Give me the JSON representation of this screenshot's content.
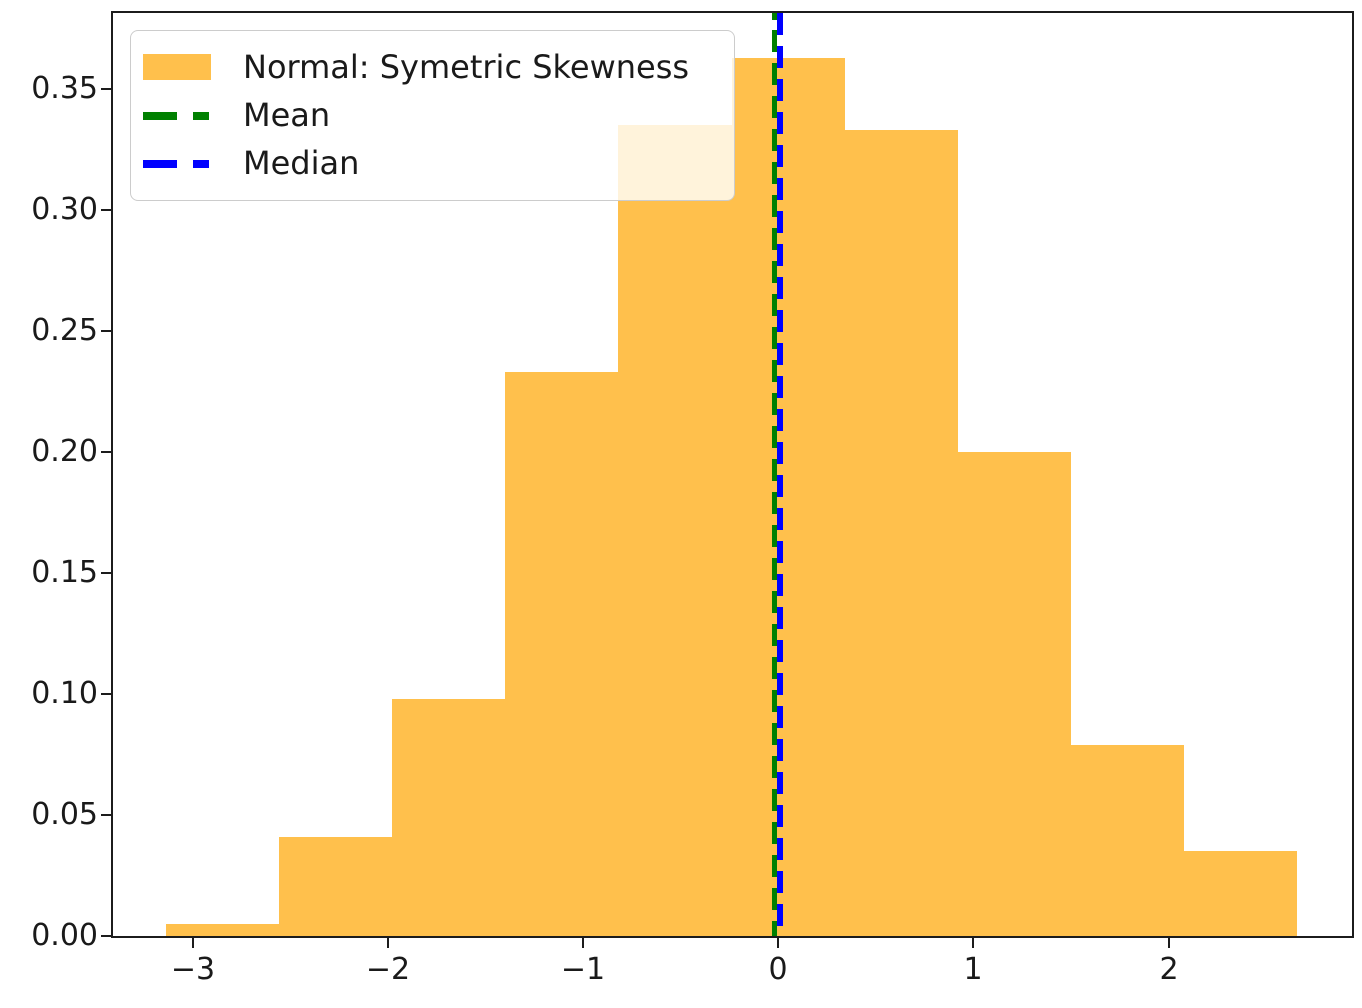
{
  "chart_data": {
    "type": "bar",
    "subtype": "histogram-density",
    "title": "",
    "xlabel": "",
    "ylabel": "",
    "grid": false,
    "bin_edges": [
      -3.14,
      -2.56,
      -1.98,
      -1.4,
      -0.82,
      -0.24,
      0.34,
      0.92,
      1.5,
      2.08,
      2.66
    ],
    "values": [
      0.005,
      0.041,
      0.098,
      0.233,
      0.335,
      0.363,
      0.333,
      0.2,
      0.079,
      0.035
    ],
    "bar_color": "#FFA500",
    "bar_alpha": 0.7,
    "xlim": [
      -3.41,
      2.94
    ],
    "ylim": [
      0,
      0.3814
    ],
    "xticks": {
      "values": [
        -3,
        -2,
        -1,
        0,
        1,
        2
      ],
      "labels": [
        "−3",
        "−2",
        "−1",
        "0",
        "1",
        "2"
      ]
    },
    "yticks": {
      "values": [
        0.0,
        0.05,
        0.1,
        0.15,
        0.2,
        0.25,
        0.3,
        0.35
      ],
      "labels": [
        "0.00",
        "0.05",
        "0.10",
        "0.15",
        "0.20",
        "0.25",
        "0.30",
        "0.35"
      ]
    },
    "mean_line": {
      "x": -0.02,
      "color": "#008000",
      "style": "dashed"
    },
    "median_line": {
      "x": 0.01,
      "color": "#0000FF",
      "style": "dashed"
    },
    "legend": {
      "position": "upper-left",
      "items": [
        {
          "label": "Normal: Symetric Skewness",
          "type": "patch",
          "color": "#FFA500"
        },
        {
          "label": "Mean",
          "type": "dashed-line",
          "color": "#008000"
        },
        {
          "label": "Median",
          "type": "dashed-line",
          "color": "#0000FF"
        }
      ]
    }
  }
}
